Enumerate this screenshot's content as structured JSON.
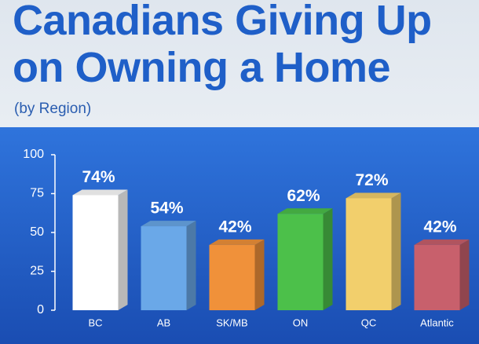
{
  "chart_data": {
    "type": "bar3d",
    "title": "Canadians Giving Up on Owning a Home",
    "subtitle": "(by Region)",
    "categories": [
      "BC",
      "AB",
      "SK/MB",
      "ON",
      "QC",
      "Atlantic"
    ],
    "values": [
      74,
      54,
      42,
      62,
      72,
      42
    ],
    "value_labels": [
      "74%",
      "54%",
      "42%",
      "62%",
      "72%",
      "42%"
    ],
    "colors": [
      "#ffffff",
      "#6aa8e8",
      "#f0913a",
      "#4cc04a",
      "#f2cf6c",
      "#c8606c"
    ],
    "ylim": [
      0,
      100
    ],
    "yticks": [
      0,
      25,
      50,
      75,
      100
    ],
    "grid": false
  }
}
